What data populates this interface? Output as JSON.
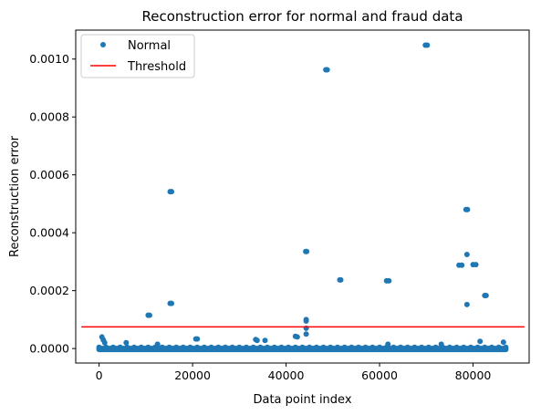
{
  "chart_data": {
    "type": "scatter",
    "title": "Reconstruction error for normal and fraud data",
    "xlabel": "Data point index",
    "ylabel": "Reconstruction error",
    "xlim": [
      -5000,
      92000
    ],
    "ylim": [
      -5e-05,
      0.0011
    ],
    "grid": false,
    "legend_position": "top-left",
    "x_ticks": [
      0,
      20000,
      40000,
      60000,
      80000
    ],
    "x_tick_labels": [
      "0",
      "20000",
      "40000",
      "60000",
      "80000"
    ],
    "y_ticks": [
      0,
      0.0002,
      0.0004,
      0.0006,
      0.0008,
      0.001
    ],
    "y_tick_labels": [
      "0.0000",
      "0.0002",
      "0.0004",
      "0.0006",
      "0.0008",
      "0.0010"
    ],
    "series": [
      {
        "name": "Normal",
        "kind": "points",
        "color": "#1f77b4",
        "x_range": [
          0,
          87000
        ],
        "points": [
          [
            10500,
            0.000115
          ],
          [
            10800,
            0.000115
          ],
          [
            15200,
            0.000542
          ],
          [
            15500,
            0.000542
          ],
          [
            15200,
            0.000156
          ],
          [
            15500,
            0.000156
          ],
          [
            44200,
            0.000335
          ],
          [
            44400,
            0.000335
          ],
          [
            44300,
            0.0001
          ],
          [
            44300,
            9.5e-05
          ],
          [
            44300,
            7e-05
          ],
          [
            44300,
            5e-05
          ],
          [
            48500,
            0.000963
          ],
          [
            48800,
            0.000963
          ],
          [
            51500,
            0.000237
          ],
          [
            51700,
            0.000237
          ],
          [
            61500,
            0.000234
          ],
          [
            62000,
            0.000234
          ],
          [
            69800,
            0.001048
          ],
          [
            70200,
            0.001048
          ],
          [
            77000,
            0.000288
          ],
          [
            77600,
            0.000288
          ],
          [
            78500,
            0.00048
          ],
          [
            78800,
            0.00048
          ],
          [
            78700,
            0.000325
          ],
          [
            78700,
            0.000152
          ],
          [
            80000,
            0.00029
          ],
          [
            80600,
            0.00029
          ],
          [
            82500,
            0.000183
          ],
          [
            82800,
            0.000183
          ],
          [
            600,
            4e-05
          ],
          [
            900,
            3e-05
          ],
          [
            1200,
            2e-05
          ],
          [
            5800,
            2e-05
          ],
          [
            12500,
            1.5e-05
          ],
          [
            20700,
            3.3e-05
          ],
          [
            21000,
            3.3e-05
          ],
          [
            33500,
            3.1e-05
          ],
          [
            33800,
            2.8e-05
          ],
          [
            35500,
            2.8e-05
          ],
          [
            42000,
            4.2e-05
          ],
          [
            42400,
            4e-05
          ],
          [
            61800,
            1.5e-05
          ],
          [
            73200,
            1.5e-05
          ],
          [
            81500,
            2.5e-05
          ],
          [
            86500,
            2.2e-05
          ]
        ]
      },
      {
        "name": "Threshold",
        "kind": "line",
        "color": "#ff0000",
        "x": [
          -3800,
          91000
        ],
        "y": [
          7.5e-05,
          7.5e-05
        ]
      }
    ]
  }
}
